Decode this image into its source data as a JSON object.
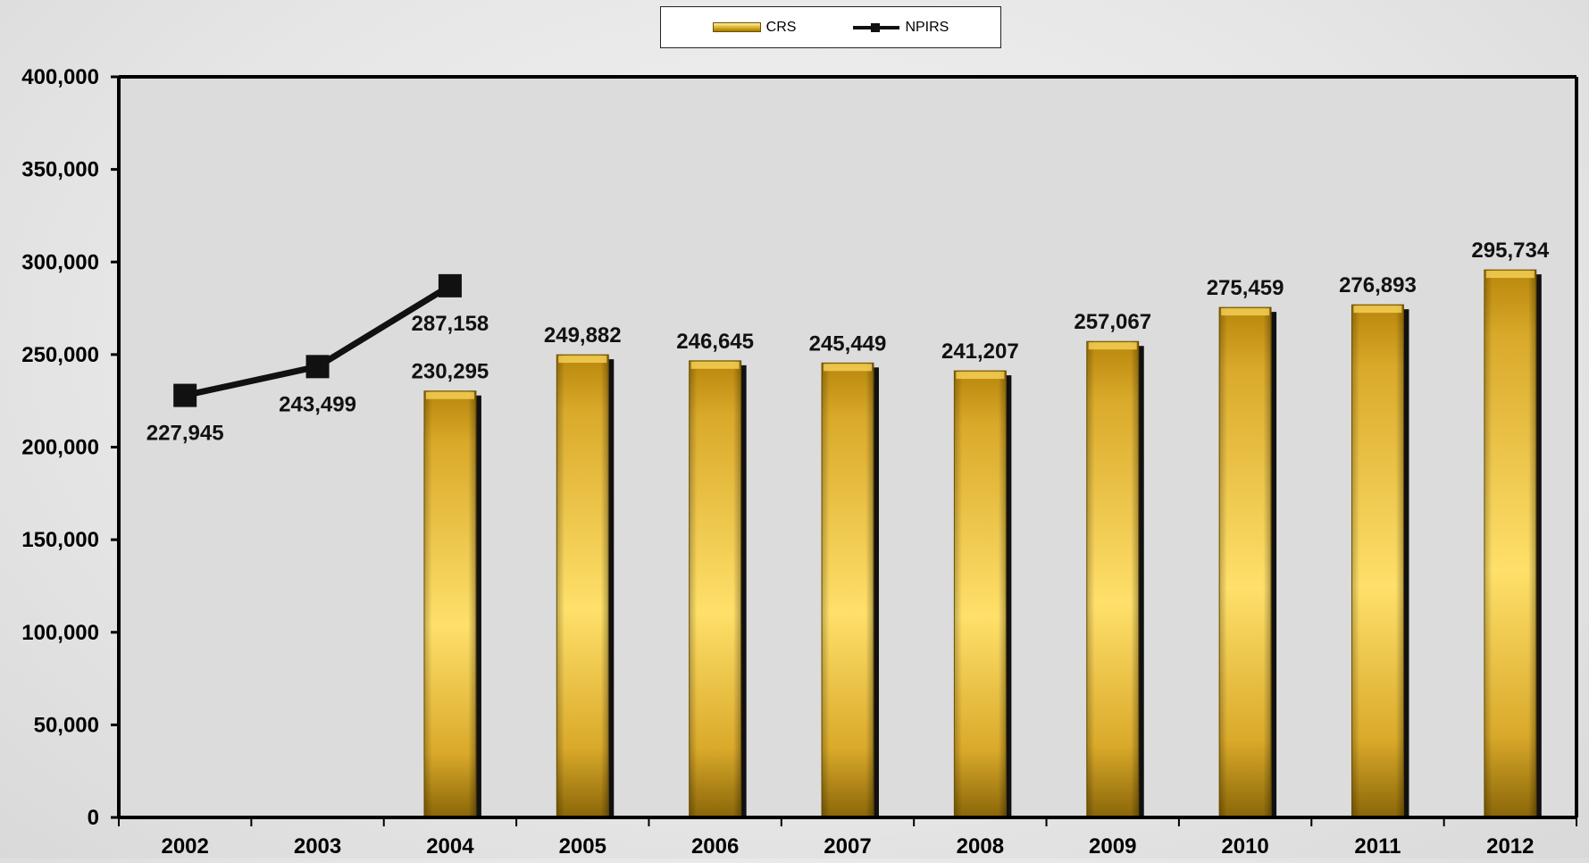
{
  "chart_data": {
    "type": "bar",
    "categories": [
      "2002",
      "2003",
      "2004",
      "2005",
      "2006",
      "2007",
      "2008",
      "2009",
      "2010",
      "2011",
      "2012"
    ],
    "series": [
      {
        "name": "CRS",
        "type": "bar",
        "color": "#d4a21c",
        "values": [
          null,
          null,
          230295,
          249882,
          246645,
          245449,
          241207,
          257067,
          275459,
          276893,
          295734
        ],
        "labels": [
          "",
          "",
          "230,295",
          "249,882",
          "246,645",
          "245,449",
          "241,207",
          "257,067",
          "275,459",
          "276,893",
          "295,734"
        ]
      },
      {
        "name": "NPIRS",
        "type": "line",
        "color": "#111111",
        "values": [
          227945,
          243499,
          287158,
          null,
          null,
          null,
          null,
          null,
          null,
          null,
          null
        ],
        "labels": [
          "227,945",
          "243,499",
          "287,158",
          "",
          "",
          "",
          "",
          "",
          "",
          "",
          ""
        ]
      }
    ],
    "ylim": [
      0,
      400000
    ],
    "yticks": [
      0,
      50000,
      100000,
      150000,
      200000,
      250000,
      300000,
      350000,
      400000
    ],
    "ytick_labels": [
      "0",
      "50,000",
      "100,000",
      "150,000",
      "200,000",
      "250,000",
      "300,000",
      "350,000",
      "400,000"
    ],
    "legend_position": "top-center",
    "grid": false
  },
  "legend": {
    "crs_label": "CRS",
    "npirs_label": "NPIRS"
  }
}
